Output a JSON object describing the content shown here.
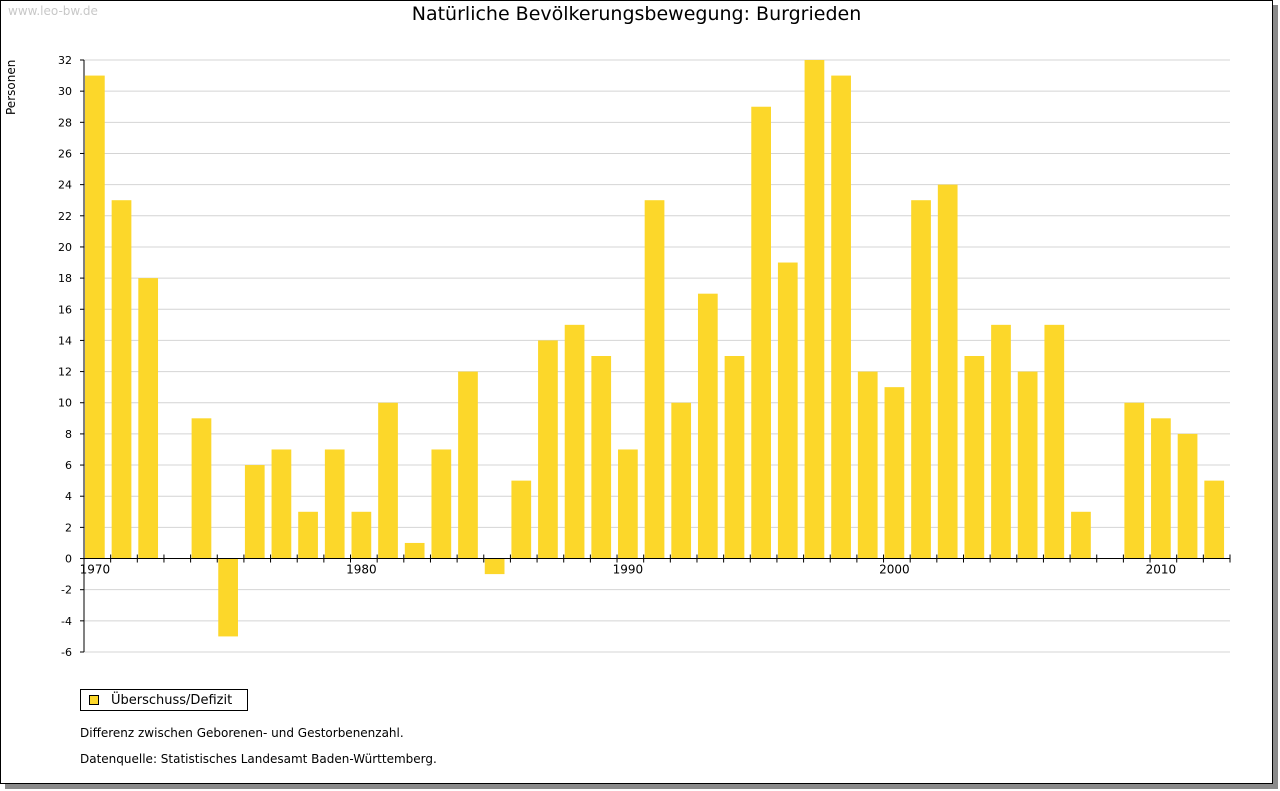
{
  "watermark": "www.leo-bw.de",
  "colors": {
    "bar": "#fcd72a",
    "grid": "#d4d4d4",
    "axis": "#000000"
  },
  "chart_data": {
    "type": "bar",
    "title": "Natürliche Bevölkerungsbewegung: Burgrieden",
    "xlabel": "",
    "ylabel": "Personen",
    "ylim": [
      -6,
      32
    ],
    "yticks": [
      -6,
      -4,
      -2,
      0,
      2,
      4,
      6,
      8,
      10,
      12,
      14,
      16,
      18,
      20,
      22,
      24,
      26,
      28,
      30,
      32
    ],
    "xticks": [
      1970,
      1980,
      1990,
      2000,
      2010
    ],
    "categories": [
      1970,
      1971,
      1972,
      1973,
      1974,
      1975,
      1976,
      1977,
      1978,
      1979,
      1980,
      1981,
      1982,
      1983,
      1984,
      1985,
      1986,
      1987,
      1988,
      1989,
      1990,
      1991,
      1992,
      1993,
      1994,
      1995,
      1996,
      1997,
      1998,
      1999,
      2000,
      2001,
      2002,
      2003,
      2004,
      2005,
      2006,
      2007,
      2008,
      2009,
      2010,
      2011,
      2012
    ],
    "series": [
      {
        "name": "Überschuss/Defizit",
        "values": [
          31,
          23,
          18,
          0,
          9,
          -5,
          6,
          7,
          3,
          7,
          3,
          10,
          1,
          7,
          12,
          -1,
          5,
          14,
          15,
          13,
          7,
          23,
          10,
          17,
          13,
          29,
          19,
          32,
          31,
          12,
          11,
          23,
          24,
          13,
          15,
          12,
          15,
          3,
          0,
          10,
          9,
          8,
          5
        ]
      }
    ],
    "legend": "bottom-left"
  },
  "notes": {
    "line1": "Differenz zwischen Geborenen- und Gestorbenenzahl.",
    "line2": "Datenquelle: Statistisches Landesamt Baden-Württemberg."
  }
}
